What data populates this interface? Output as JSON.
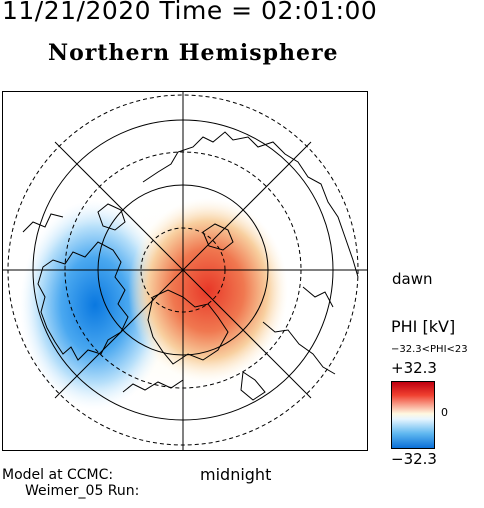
{
  "header": {
    "date_time": "11/21/2020 Time = 02:01:00",
    "hemisphere": "Northern Hemisphere"
  },
  "orientation": {
    "right_label": "dawn",
    "bottom_label": "midnight"
  },
  "colorbar": {
    "variable_label": "PHI [kV]",
    "range_text": "−32.3<PHI<23",
    "max_label": "+32.3",
    "min_label": "−32.3",
    "zero_label": "0",
    "colors": {
      "positive": "#d01818",
      "neutral": "#ffffff",
      "negative": "#0a70d8"
    }
  },
  "footer": {
    "model_line1": "Model at CCMC:",
    "model_line2": "Weimer_05 Run:"
  },
  "map": {
    "projection": "polar",
    "features": [
      "latitude-circles",
      "meridians",
      "coastlines",
      "potential-pattern"
    ]
  }
}
